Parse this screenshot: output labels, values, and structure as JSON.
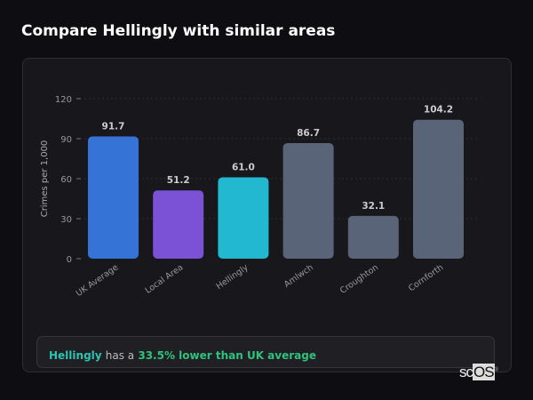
{
  "title": "Compare Hellingly with similar areas",
  "chart_data": {
    "type": "bar",
    "categories": [
      "UK Average",
      "Local Area",
      "Hellingly",
      "Amlwch",
      "Croughton",
      "Cornforth"
    ],
    "values": [
      91.7,
      51.2,
      61.0,
      86.7,
      32.1,
      104.2
    ],
    "value_labels": [
      "91.7",
      "51.2",
      "61.0",
      "86.7",
      "32.1",
      "104.2"
    ],
    "colors": [
      "#3574d6",
      "#7b52d6",
      "#22b8cf",
      "#5a6478",
      "#5a6478",
      "#5a6478"
    ],
    "ylabel": "Crimes per 1,000",
    "xlabel": "",
    "ylim": [
      0,
      120
    ],
    "yticks": [
      0,
      30,
      60,
      90,
      120
    ],
    "grid": true
  },
  "note": {
    "area": "Hellingly",
    "text": "has a",
    "comparison": "33.5% lower than UK average"
  },
  "logo": {
    "text1": "sc",
    "text2": "OS",
    "mark": "®"
  }
}
